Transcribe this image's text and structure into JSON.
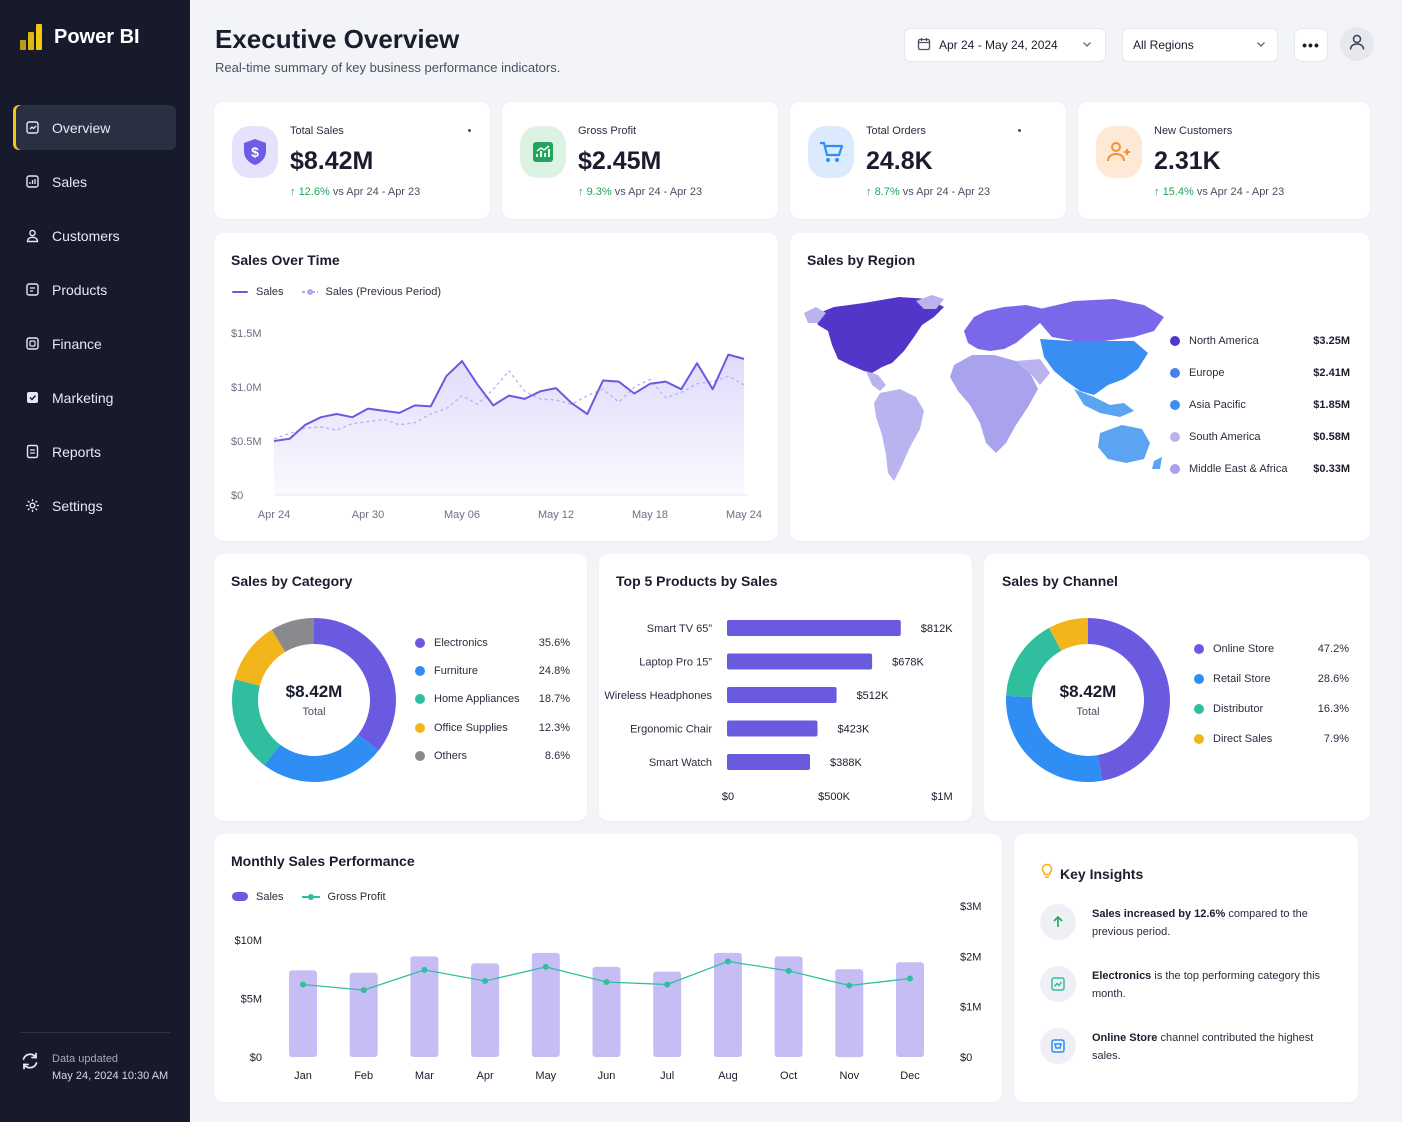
{
  "app": {
    "name": "Power BI"
  },
  "sidebar": {
    "items": [
      {
        "label": "Overview",
        "icon": "overview-icon",
        "active": true
      },
      {
        "label": "Sales",
        "icon": "sales-icon"
      },
      {
        "label": "Customers",
        "icon": "customers-icon"
      },
      {
        "label": "Products",
        "icon": "products-icon"
      },
      {
        "label": "Finance",
        "icon": "finance-icon"
      },
      {
        "label": "Marketing",
        "icon": "marketing-icon"
      },
      {
        "label": "Reports",
        "icon": "reports-icon"
      },
      {
        "label": "Settings",
        "icon": "gear-icon"
      }
    ],
    "footer": {
      "label": "Data updated",
      "timestamp": "May 24, 2024 10:30 AM"
    }
  },
  "header": {
    "title": "Executive Overview",
    "subtitle": "Real-time summary of key business performance indicators.",
    "date_range": "Apr 24 - May 24, 2024",
    "region_filter": "All Regions",
    "more_label": "•••"
  },
  "kpis": [
    {
      "label": "Total Sales",
      "value": "$8.42M",
      "change": "12.6%",
      "compare": "vs Apr 24 - Apr 23",
      "color": "#6c5ce7"
    },
    {
      "label": "Gross Profit",
      "value": "$2.45M",
      "change": "9.3%",
      "compare": "vs Apr 24 - Apr 23",
      "color": "#22a55a"
    },
    {
      "label": "Total Orders",
      "value": "24.8K",
      "change": "8.7%",
      "compare": "vs Apr 24 - Apr 23",
      "color": "#2f8ef4"
    },
    {
      "label": "New Customers",
      "value": "2.31K",
      "change": "15.4%",
      "compare": "vs Apr 24 - Apr 23",
      "color": "#f5922b"
    }
  ],
  "sales_over_time": {
    "title": "Sales Over Time",
    "legend": [
      "Sales",
      "Sales (Previous Period)"
    ]
  },
  "sales_by_region": {
    "title": "Sales by Region",
    "regions": [
      {
        "name": "North America",
        "value": "$3.25M",
        "color": "#5336c9"
      },
      {
        "name": "Europe",
        "value": "$2.41M",
        "color": "#4a7df0"
      },
      {
        "name": "Asia Pacific",
        "value": "$1.85M",
        "color": "#3a8ef2"
      },
      {
        "name": "South America",
        "value": "$0.58M",
        "color": "#b9b4ef"
      },
      {
        "name": "Middle East & Africa",
        "value": "$0.33M",
        "color": "#a9a2ec"
      }
    ]
  },
  "sales_by_category": {
    "title": "Sales by Category",
    "total": "$8.42M",
    "total_label": "Total"
  },
  "top_products": {
    "title": "Top 5 Products by Sales"
  },
  "sales_by_channel": {
    "title": "Sales by Channel",
    "total": "$8.42M",
    "total_label": "Total"
  },
  "monthly": {
    "title": "Monthly Sales Performance",
    "legend": [
      "Sales",
      "Gross Profit"
    ]
  },
  "insights": {
    "title": "Key Insights",
    "items": [
      {
        "bold": "Sales increased by 12.6%",
        "rest": " compared to the previous period.",
        "icon": "arrow-up-icon"
      },
      {
        "bold": "Electronics",
        "rest": " is the top performing category this month.",
        "icon": "trend-icon"
      },
      {
        "bold": "Online Store",
        "rest": " channel contributed the highest sales.",
        "icon": "store-icon"
      }
    ]
  },
  "chart_data": [
    {
      "id": "sales_over_time",
      "type": "line",
      "title": "Sales Over Time",
      "x": [
        "Apr 24",
        "Apr 25",
        "Apr 26",
        "Apr 27",
        "Apr 28",
        "Apr 29",
        "Apr 30",
        "May 01",
        "May 02",
        "May 03",
        "May 04",
        "May 05",
        "May 06",
        "May 07",
        "May 08",
        "May 09",
        "May 10",
        "May 11",
        "May 12",
        "May 13",
        "May 14",
        "May 15",
        "May 16",
        "May 17",
        "May 18",
        "May 19",
        "May 20",
        "May 21",
        "May 22",
        "May 23",
        "May 24"
      ],
      "xticks": [
        "Apr 24",
        "Apr 30",
        "May 06",
        "May 12",
        "May 18",
        "May 24"
      ],
      "series": [
        {
          "name": "Sales",
          "values": [
            0.5,
            0.52,
            0.65,
            0.72,
            0.75,
            0.72,
            0.8,
            0.78,
            0.76,
            0.83,
            0.82,
            1.1,
            1.24,
            1.02,
            0.83,
            0.92,
            0.89,
            0.96,
            0.99,
            0.85,
            0.75,
            1.06,
            1.05,
            0.94,
            1.03,
            1.05,
            0.98,
            1.22,
            0.98,
            1.3,
            1.26
          ]
        },
        {
          "name": "Sales (Previous Period)",
          "values": [
            0.52,
            0.57,
            0.62,
            0.63,
            0.6,
            0.66,
            0.68,
            0.7,
            0.65,
            0.67,
            0.75,
            0.8,
            0.92,
            0.84,
            0.98,
            1.15,
            0.96,
            0.89,
            0.88,
            0.84,
            0.92,
            0.98,
            0.86,
            1.0,
            1.07,
            0.9,
            0.95,
            1.03,
            1.05,
            1.1,
            1.02
          ]
        }
      ],
      "yticks": [
        "$0",
        "$0.5M",
        "$1.0M",
        "$1.5M"
      ],
      "ylim": [
        0,
        1.5
      ],
      "grid": false,
      "legend": "top-left"
    },
    {
      "id": "sales_by_category",
      "type": "pie",
      "title": "Sales by Category",
      "categories": [
        "Electronics",
        "Furniture",
        "Home Appliances",
        "Office Supplies",
        "Others"
      ],
      "values": [
        35.6,
        24.8,
        18.7,
        12.3,
        8.6
      ],
      "labels": [
        "35.6%",
        "24.8%",
        "18.7%",
        "12.3%",
        "8.6%"
      ],
      "colors": [
        "#6a5ae0",
        "#2f8ef4",
        "#2fbf9f",
        "#f2b51c",
        "#8a8a8e"
      ],
      "legend": "right"
    },
    {
      "id": "top_products",
      "type": "bar",
      "title": "Top 5 Products by Sales",
      "orientation": "horizontal",
      "categories": [
        "Smart TV 65”",
        "Laptop Pro 15”",
        "Wireless Headphones",
        "Ergonomic Chair",
        "Smart Watch"
      ],
      "values": [
        812,
        678,
        512,
        423,
        388
      ],
      "labels": [
        "$812K",
        "$678K",
        "$512K",
        "$423K",
        "$388K"
      ],
      "xticks": [
        "$0",
        "$500K",
        "$1M"
      ],
      "xlim": [
        0,
        1000
      ]
    },
    {
      "id": "sales_by_channel",
      "type": "pie",
      "title": "Sales by Channel",
      "categories": [
        "Online Store",
        "Retail Store",
        "Distributor",
        "Direct Sales"
      ],
      "values": [
        47.2,
        28.6,
        16.3,
        7.9
      ],
      "labels": [
        "47.2%",
        "28.6%",
        "16.3%",
        "7.9%"
      ],
      "colors": [
        "#6a5ae0",
        "#2f8ef4",
        "#2fbf9f",
        "#f2b51c"
      ],
      "legend": "right"
    },
    {
      "id": "monthly",
      "type": "bar",
      "title": "Monthly Sales Performance",
      "categories": [
        "Jan",
        "Feb",
        "Mar",
        "Apr",
        "May",
        "Jun",
        "Jul",
        "Aug",
        "Oct",
        "Nov",
        "Dec"
      ],
      "series": [
        {
          "name": "Sales",
          "values": [
            7.4,
            7.2,
            8.6,
            8.0,
            8.9,
            7.7,
            7.3,
            8.9,
            8.6,
            7.5,
            8.1
          ],
          "axis": "left"
        },
        {
          "name": "Gross Profit",
          "values": [
            1.44,
            1.33,
            1.73,
            1.51,
            1.79,
            1.49,
            1.44,
            1.9,
            1.71,
            1.42,
            1.56
          ],
          "axis": "right"
        }
      ],
      "yticks_left": [
        "$0",
        "$5M",
        "$10M"
      ],
      "ylim_left": [
        0,
        10
      ],
      "yticks_right": [
        "$0",
        "$1M",
        "$2M",
        "$3M"
      ],
      "ylim_right": [
        0,
        3
      ],
      "legend": "top-left"
    }
  ]
}
